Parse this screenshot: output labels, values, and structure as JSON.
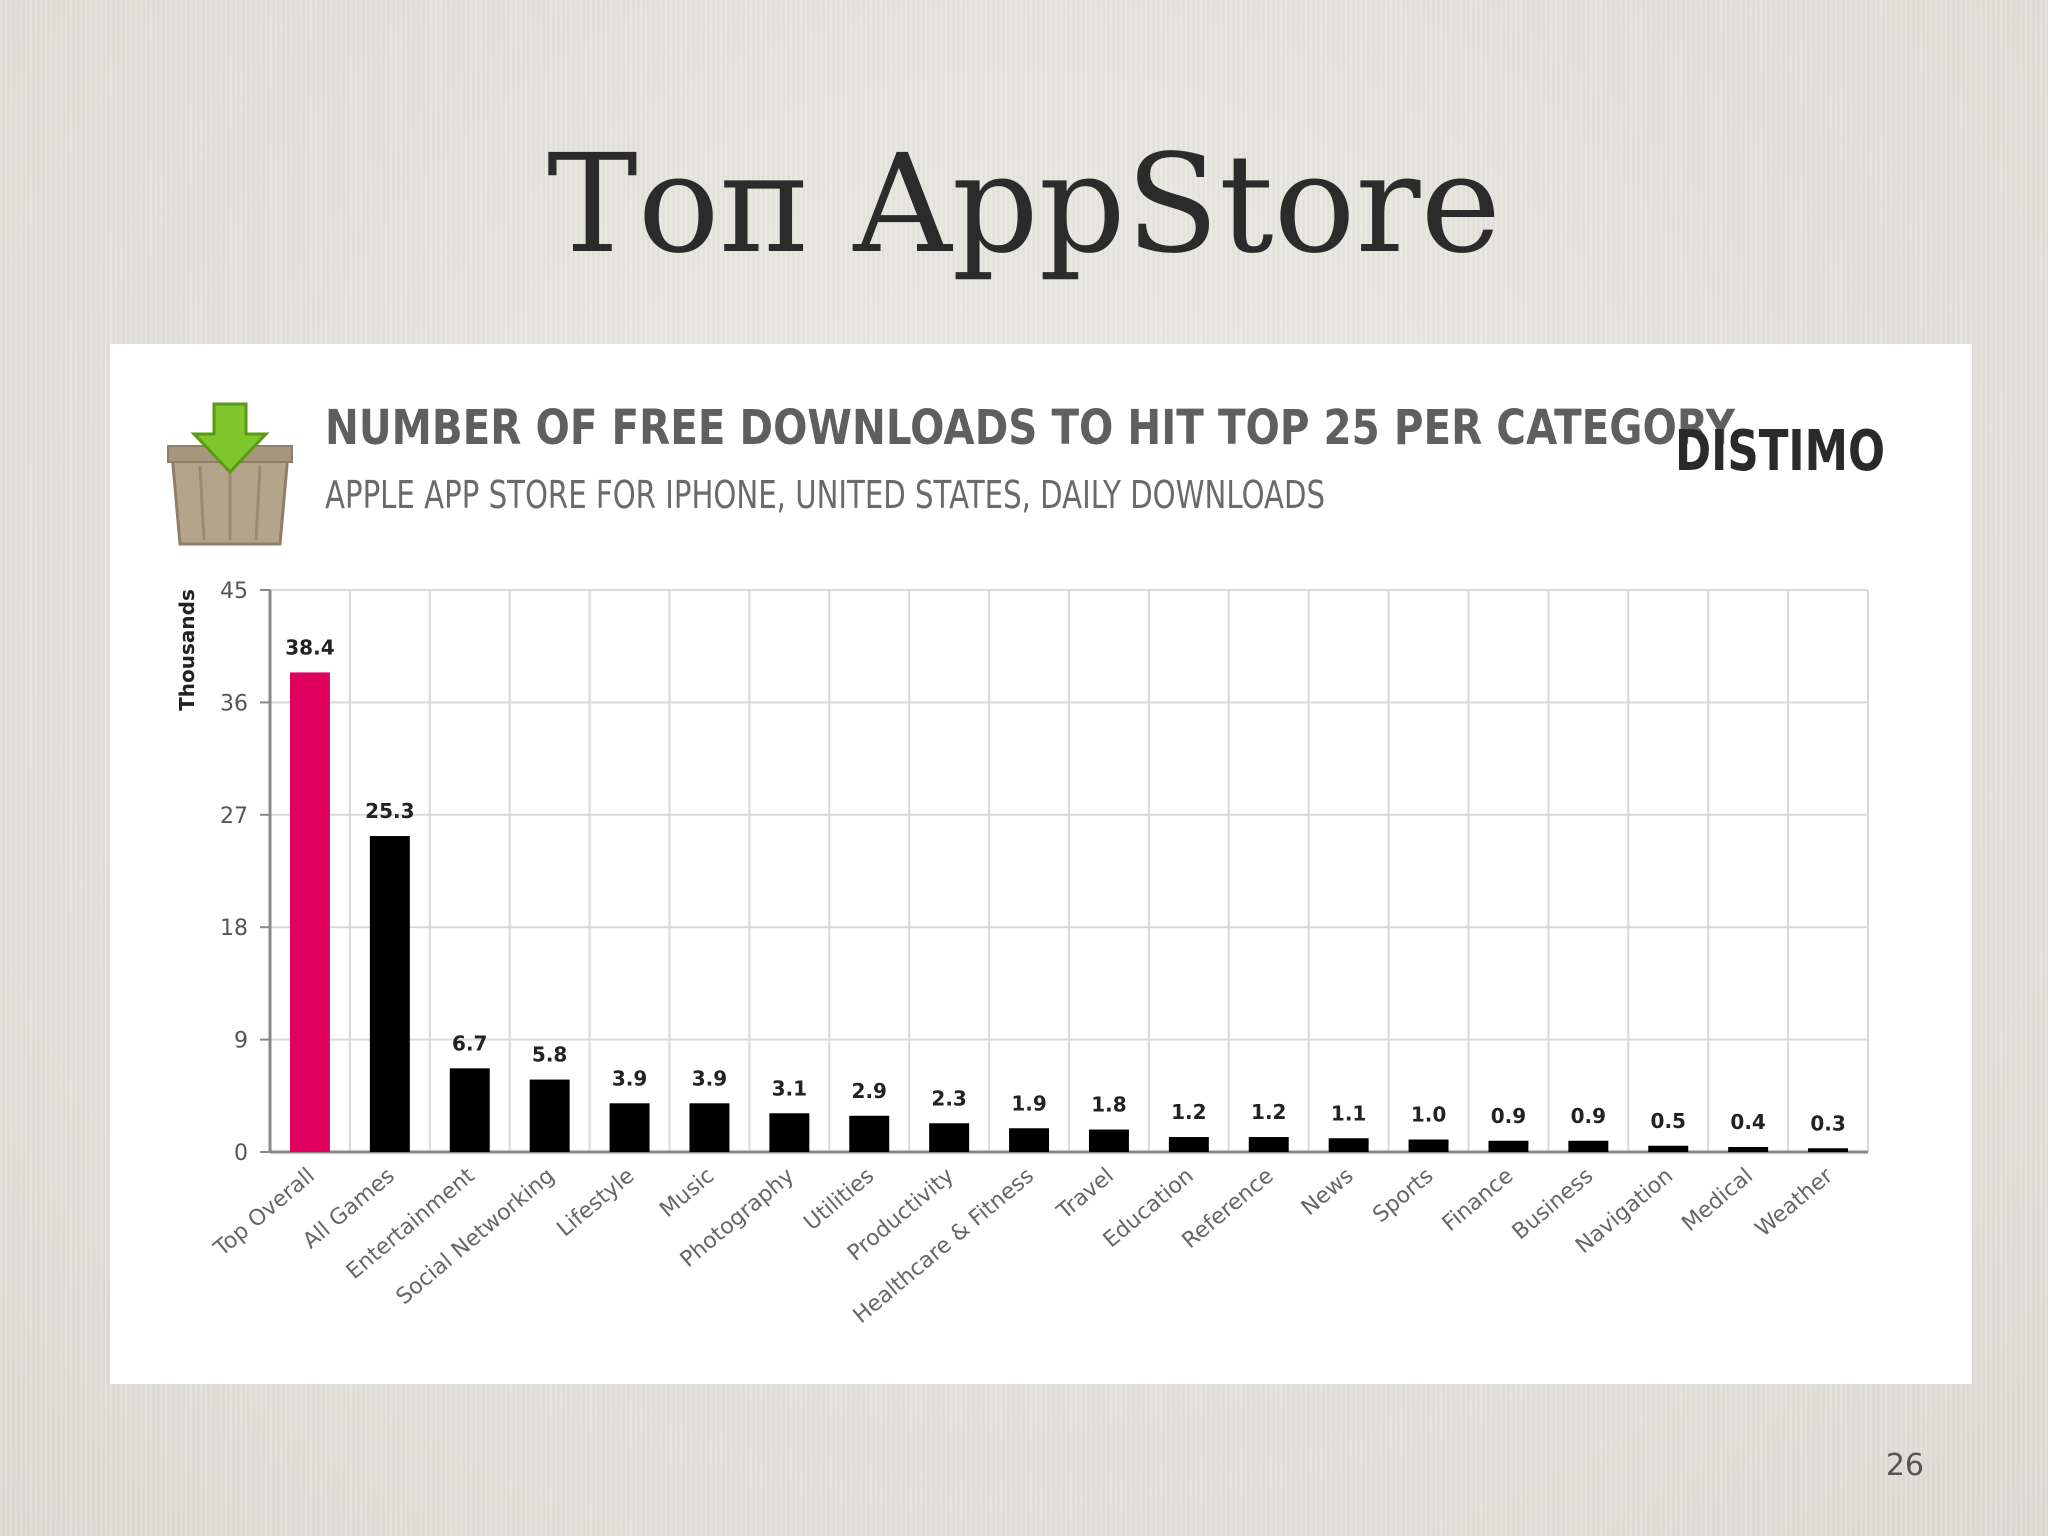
{
  "slide": {
    "title": "Топ AppStore",
    "page_number": "26"
  },
  "chart_header": {
    "title": "NUMBER OF FREE DOWNLOADS TO HIT TOP 25 PER CATEGORY",
    "subtitle": "APPLE APP STORE FOR IPHONE, UNITED STATES, DAILY DOWNLOADS",
    "brand": "DISTIMO",
    "icon": "download-box-icon"
  },
  "colors": {
    "highlight": "#e0005e",
    "bar": "#000000",
    "grid": "#d9d9d9",
    "axis": "#888888",
    "header_text": "#5f5f5f",
    "icon_arrow": "#7fc52c",
    "icon_box": "#b5a48c"
  },
  "chart_data": {
    "type": "bar",
    "title": "NUMBER OF FREE DOWNLOADS TO HIT TOP 25 PER CATEGORY",
    "subtitle": "APPLE APP STORE FOR IPHONE, UNITED STATES, DAILY DOWNLOADS",
    "xlabel": "",
    "ylabel": "Thousands",
    "ylim": [
      0,
      45
    ],
    "yticks": [
      0,
      9,
      18,
      27,
      36,
      45
    ],
    "grid": true,
    "legend": "none",
    "categories": [
      "Top Overall",
      "All Games",
      "Entertainment",
      "Social Networking",
      "Lifestyle",
      "Music",
      "Photography",
      "Utilities",
      "Productivity",
      "Healthcare & Fitness",
      "Travel",
      "Education",
      "Reference",
      "News",
      "Sports",
      "Finance",
      "Business",
      "Navigation",
      "Medical",
      "Weather"
    ],
    "values": [
      38.4,
      25.3,
      6.7,
      5.8,
      3.9,
      3.9,
      3.1,
      2.9,
      2.3,
      1.9,
      1.8,
      1.2,
      1.2,
      1.1,
      1.0,
      0.9,
      0.9,
      0.5,
      0.4,
      0.3
    ],
    "value_labels": [
      "38.4",
      "25.3",
      "6.7",
      "5.8",
      "3.9",
      "3.9",
      "3.1",
      "2.9",
      "2.3",
      "1.9",
      "1.8",
      "1.2",
      "1.2",
      "1.1",
      "1.0",
      "0.9",
      "0.9",
      "0.5",
      "0.4",
      "0.3"
    ],
    "highlighted_index": 0
  }
}
